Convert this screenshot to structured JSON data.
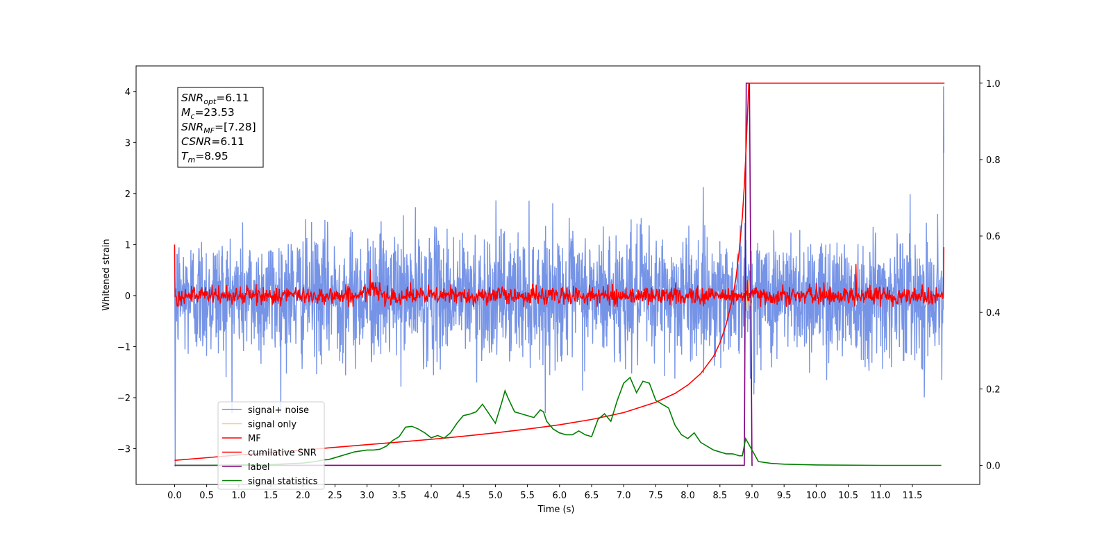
{
  "chart_data": {
    "type": "line",
    "title": "",
    "xlabel": "Time (s)",
    "ylabel": "Whitened strain",
    "xlim": [
      -0.6,
      12.55
    ],
    "ylim": [
      -3.7,
      4.5
    ],
    "y2lim": [
      -0.05,
      1.045
    ],
    "xticks": [
      0.0,
      0.5,
      1.0,
      1.5,
      2.0,
      2.5,
      3.0,
      3.5,
      4.0,
      4.5,
      5.0,
      5.5,
      6.0,
      6.5,
      7.0,
      7.5,
      8.0,
      8.5,
      9.0,
      9.5,
      10.0,
      10.5,
      11.0,
      11.5
    ],
    "xtick_labels": [
      "0.0",
      "0.5",
      "1.0",
      "1.5",
      "2.0",
      "2.5",
      "3.0",
      "3.5",
      "4.0",
      "4.5",
      "5.0",
      "5.5",
      "6.0",
      "6.5",
      "7.0",
      "7.5",
      "8.0",
      "8.5",
      "9.0",
      "9.5",
      "10.0",
      "10.5",
      "11.0",
      "11.5"
    ],
    "yticks": [
      -3,
      -2,
      -1,
      0,
      1,
      2,
      3,
      4
    ],
    "ytick_labels": [
      "−3",
      "−2",
      "−1",
      "0",
      "1",
      "2",
      "3",
      "4"
    ],
    "y2ticks": [
      0.0,
      0.2,
      0.4,
      0.6,
      0.8,
      1.0
    ],
    "y2tick_labels": [
      "0.0",
      "0.2",
      "0.4",
      "0.6",
      "0.8",
      "1.0"
    ],
    "grid": false,
    "legend_position": "lower-left",
    "colors": {
      "noise": "#6f8ee6",
      "signal": "#f5cd77",
      "mf": "#ff0000",
      "csnr": "#ff0000",
      "label": "#800080",
      "stats": "#008000"
    },
    "series": [
      {
        "name": "signal+ noise",
        "axis": "left",
        "color": "#6f8ee6",
        "note_range": [
          -2.3,
          2.5
        ],
        "spike_points": [
          {
            "x": 0.0,
            "y": -3.35
          },
          {
            "x": 11.99,
            "y": 4.1
          }
        ]
      },
      {
        "name": "signal only",
        "axis": "left",
        "color": "#f5cd77",
        "x": [
          8.85,
          8.9,
          8.93,
          8.95,
          8.97,
          9.0
        ],
        "y": [
          0.0,
          0.1,
          -0.3,
          0.3,
          -0.2,
          0.0
        ]
      },
      {
        "name": "MF",
        "axis": "left",
        "color": "#ff0000",
        "start_y": 1.0,
        "end_y": 0.95,
        "peak_points": [
          {
            "x": 3.05,
            "y": 0.52
          },
          {
            "x": 8.93,
            "y": 0.3
          },
          {
            "x": 10.62,
            "y": 0.62
          }
        ]
      },
      {
        "name": "cumilative SNR",
        "axis": "right",
        "color": "#ff0000",
        "x": [
          0.0,
          0.5,
          1.0,
          1.5,
          2.0,
          2.5,
          3.0,
          3.5,
          4.0,
          4.5,
          5.0,
          5.5,
          6.0,
          6.5,
          7.0,
          7.5,
          7.8,
          8.0,
          8.2,
          8.4,
          8.5,
          8.6,
          8.7,
          8.75,
          8.8,
          8.85,
          8.88,
          8.9,
          8.92,
          8.94,
          8.95,
          12.0
        ],
        "y": [
          0.013,
          0.02,
          0.027,
          0.033,
          0.04,
          0.047,
          0.054,
          0.061,
          0.068,
          0.076,
          0.085,
          0.095,
          0.106,
          0.12,
          0.138,
          0.165,
          0.188,
          0.21,
          0.24,
          0.285,
          0.32,
          0.37,
          0.44,
          0.49,
          0.56,
          0.65,
          0.73,
          0.8,
          0.88,
          0.96,
          1.0,
          1.0
        ]
      },
      {
        "name": "label",
        "axis": "right",
        "color": "#800080",
        "x": [
          0.0,
          8.88,
          8.91,
          8.96,
          9.0,
          9.01
        ],
        "y": [
          0.0,
          0.0,
          1.0,
          1.0,
          0.0,
          0.0
        ]
      },
      {
        "name": "signal statistics",
        "axis": "right",
        "color": "#008000",
        "x": [
          0.0,
          0.5,
          1.0,
          1.5,
          2.0,
          2.2,
          2.3,
          2.4,
          2.6,
          2.8,
          3.0,
          3.1,
          3.2,
          3.3,
          3.4,
          3.5,
          3.6,
          3.7,
          3.8,
          3.9,
          4.0,
          4.1,
          4.2,
          4.3,
          4.4,
          4.5,
          4.6,
          4.7,
          4.8,
          4.9,
          5.0,
          5.1,
          5.15,
          5.2,
          5.3,
          5.4,
          5.5,
          5.6,
          5.7,
          5.75,
          5.8,
          5.9,
          6.0,
          6.1,
          6.2,
          6.3,
          6.4,
          6.5,
          6.6,
          6.7,
          6.8,
          6.9,
          7.0,
          7.1,
          7.2,
          7.3,
          7.4,
          7.5,
          7.6,
          7.7,
          7.8,
          7.9,
          8.0,
          8.1,
          8.2,
          8.3,
          8.4,
          8.5,
          8.6,
          8.7,
          8.8,
          8.85,
          8.9,
          9.0,
          9.1,
          9.3,
          9.5,
          10.0,
          11.0,
          11.95
        ],
        "y": [
          0.0,
          0.0,
          0.001,
          0.002,
          0.006,
          0.01,
          0.014,
          0.015,
          0.025,
          0.035,
          0.04,
          0.04,
          0.042,
          0.05,
          0.065,
          0.075,
          0.1,
          0.102,
          0.095,
          0.085,
          0.072,
          0.078,
          0.071,
          0.085,
          0.11,
          0.13,
          0.134,
          0.14,
          0.16,
          0.135,
          0.11,
          0.165,
          0.195,
          0.175,
          0.14,
          0.135,
          0.13,
          0.125,
          0.145,
          0.14,
          0.115,
          0.095,
          0.085,
          0.08,
          0.08,
          0.09,
          0.08,
          0.075,
          0.12,
          0.135,
          0.115,
          0.17,
          0.215,
          0.23,
          0.19,
          0.22,
          0.215,
          0.17,
          0.16,
          0.15,
          0.105,
          0.08,
          0.07,
          0.085,
          0.06,
          0.05,
          0.04,
          0.035,
          0.03,
          0.03,
          0.025,
          0.025,
          0.07,
          0.04,
          0.01,
          0.005,
          0.003,
          0.001,
          0.0,
          0.0
        ]
      }
    ],
    "annotation": [
      {
        "base": "SNR",
        "sub": "opt",
        "value": "=6.11"
      },
      {
        "base": "M",
        "sub": "c",
        "value": "=23.53"
      },
      {
        "base": "SNR",
        "sub": "MF",
        "value": "=[7.28]"
      },
      {
        "base": "CSNR",
        "sub": "",
        "value": "=6.11"
      },
      {
        "base": "T",
        "sub": "m",
        "value": "=8.95"
      }
    ]
  }
}
